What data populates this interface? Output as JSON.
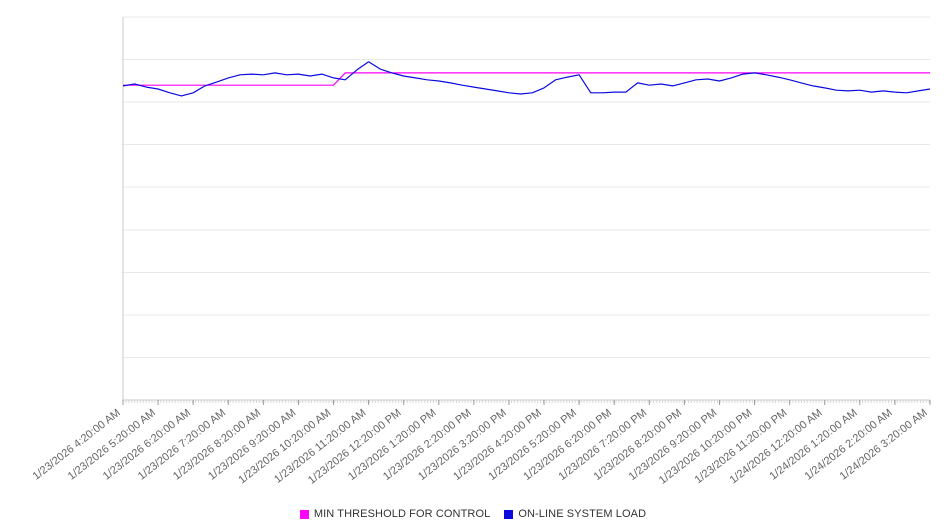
{
  "chart_data": {
    "type": "line",
    "title": "",
    "xlabel": "",
    "ylabel": "",
    "ylim": [
      0,
      100
    ],
    "grid": "horizontal",
    "legend_position": "bottom",
    "points_per_tick": 3,
    "x_tick_labels": [
      "1/23/2026 4:20:00 AM",
      "1/23/2026 5:20:00 AM",
      "1/23/2026 6:20:00 AM",
      "1/23/2026 7:20:00 AM",
      "1/23/2026 8:20:00 AM",
      "1/23/2026 9:20:00 AM",
      "1/23/2026 10:20:00 AM",
      "1/23/2026 11:20:00 AM",
      "1/23/2026 12:20:00 PM",
      "1/23/2026 1:20:00 PM",
      "1/23/2026 2:20:00 PM",
      "1/23/2026 3:20:00 PM",
      "1/23/2026 4:20:00 PM",
      "1/23/2026 5:20:00 PM",
      "1/23/2026 6:20:00 PM",
      "1/23/2026 7:20:00 PM",
      "1/23/2026 8:20:00 PM",
      "1/23/2026 9:20:00 PM",
      "1/23/2026 10:20:00 PM",
      "1/23/2026 11:20:00 PM",
      "1/24/2026 12:20:00 AM",
      "1/24/2026 1:20:00 AM",
      "1/24/2026 2:20:00 AM",
      "1/24/2026 3:20:00 AM"
    ],
    "series": [
      {
        "name": "MIN THRESHOLD FOR CONTROL",
        "color": "#ff00ff",
        "values": [
          82.2,
          82.2,
          82.2,
          82.2,
          82.2,
          82.2,
          82.2,
          82.2,
          82.2,
          82.2,
          82.2,
          82.2,
          82.2,
          82.2,
          82.2,
          82.2,
          82.2,
          82.2,
          82.2,
          85.4,
          85.4,
          85.4,
          85.4,
          85.4,
          85.4,
          85.4,
          85.4,
          85.4,
          85.4,
          85.4,
          85.4,
          85.4,
          85.4,
          85.4,
          85.4,
          85.4,
          85.4,
          85.4,
          85.4,
          85.4,
          85.4,
          85.4,
          85.4,
          85.4,
          85.4,
          85.4,
          85.4,
          85.4,
          85.4,
          85.4,
          85.4,
          85.4,
          85.4,
          85.4,
          85.4,
          85.4,
          85.4,
          85.4,
          85.4,
          85.4,
          85.4,
          85.4,
          85.4,
          85.4,
          85.4,
          85.4,
          85.4,
          85.4,
          85.4,
          85.4
        ]
      },
      {
        "name": "ON-LINE SYSTEM LOAD",
        "color": "#0b0bdf",
        "values": [
          82.0,
          82.5,
          81.7,
          81.2,
          80.2,
          79.4,
          80.2,
          82.0,
          83.0,
          84.1,
          84.9,
          85.1,
          84.9,
          85.4,
          84.9,
          85.1,
          84.6,
          85.1,
          84.1,
          83.6,
          86.2,
          88.3,
          86.4,
          85.4,
          84.6,
          84.1,
          83.6,
          83.3,
          82.8,
          82.2,
          81.7,
          81.2,
          80.7,
          80.2,
          79.9,
          80.2,
          81.5,
          83.6,
          84.3,
          84.9,
          80.2,
          80.2,
          80.4,
          80.4,
          82.8,
          82.2,
          82.5,
          82.0,
          82.8,
          83.6,
          83.8,
          83.3,
          84.1,
          85.1,
          85.4,
          84.9,
          84.3,
          83.6,
          82.8,
          82.0,
          81.5,
          80.9,
          80.7,
          80.9,
          80.4,
          80.7,
          80.4,
          80.2,
          80.7,
          81.2
        ]
      }
    ]
  }
}
